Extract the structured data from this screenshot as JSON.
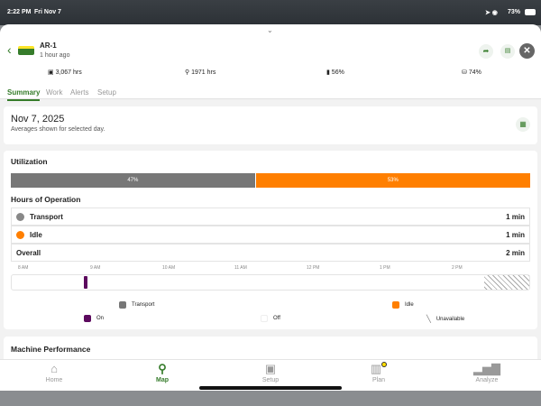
{
  "status_bar": {
    "time": "2:22 PM",
    "date": "Fri Nov 7",
    "battery": "73%"
  },
  "header": {
    "machine_name": "AR-1",
    "last_seen": "1 hour ago"
  },
  "stats": [
    {
      "icon": "engine-hours-icon",
      "value": "3,067 hrs"
    },
    {
      "icon": "separator-hours-icon",
      "value": "1971 hrs"
    },
    {
      "icon": "fuel-icon",
      "value": "56%"
    },
    {
      "icon": "def-icon",
      "value": "74%"
    }
  ],
  "tabs": [
    {
      "label": "Summary",
      "active": true
    },
    {
      "label": "Work"
    },
    {
      "label": "Alerts"
    },
    {
      "label": "Setup"
    }
  ],
  "date_card": {
    "date": "Nov 7, 2025",
    "subtitle": "Averages shown for selected day."
  },
  "utilization": {
    "title": "Utilization",
    "transport_pct": "47%",
    "idle_pct": "53%",
    "transport_fraction": 0.47,
    "hours_title": "Hours of Operation",
    "rows": [
      {
        "label": "Transport",
        "value": "1 min"
      },
      {
        "label": "Idle",
        "value": "1 min"
      }
    ],
    "overall": {
      "label": "Overall",
      "value": "2 min"
    },
    "timeline_ticks": [
      "8 AM",
      "9 AM",
      "10 AM",
      "11 AM",
      "12 PM",
      "1 PM",
      "2 PM"
    ],
    "legend": {
      "transport": "Transport",
      "idle": "Idle",
      "on": "On",
      "off": "Off",
      "unavailable": "Unavailable"
    }
  },
  "performance": {
    "title": "Machine Performance"
  },
  "nav": [
    {
      "label": "Home",
      "icon": "home-icon"
    },
    {
      "label": "Map",
      "icon": "map-pin-icon",
      "active": true
    },
    {
      "label": "Setup",
      "icon": "setup-icon"
    },
    {
      "label": "Plan",
      "icon": "plan-icon"
    },
    {
      "label": "Analyze",
      "icon": "analyze-icon"
    }
  ],
  "colors": {
    "green": "#367c2b",
    "transport": "#777777",
    "idle": "#ff7f00",
    "on": "#5c0a5e"
  }
}
